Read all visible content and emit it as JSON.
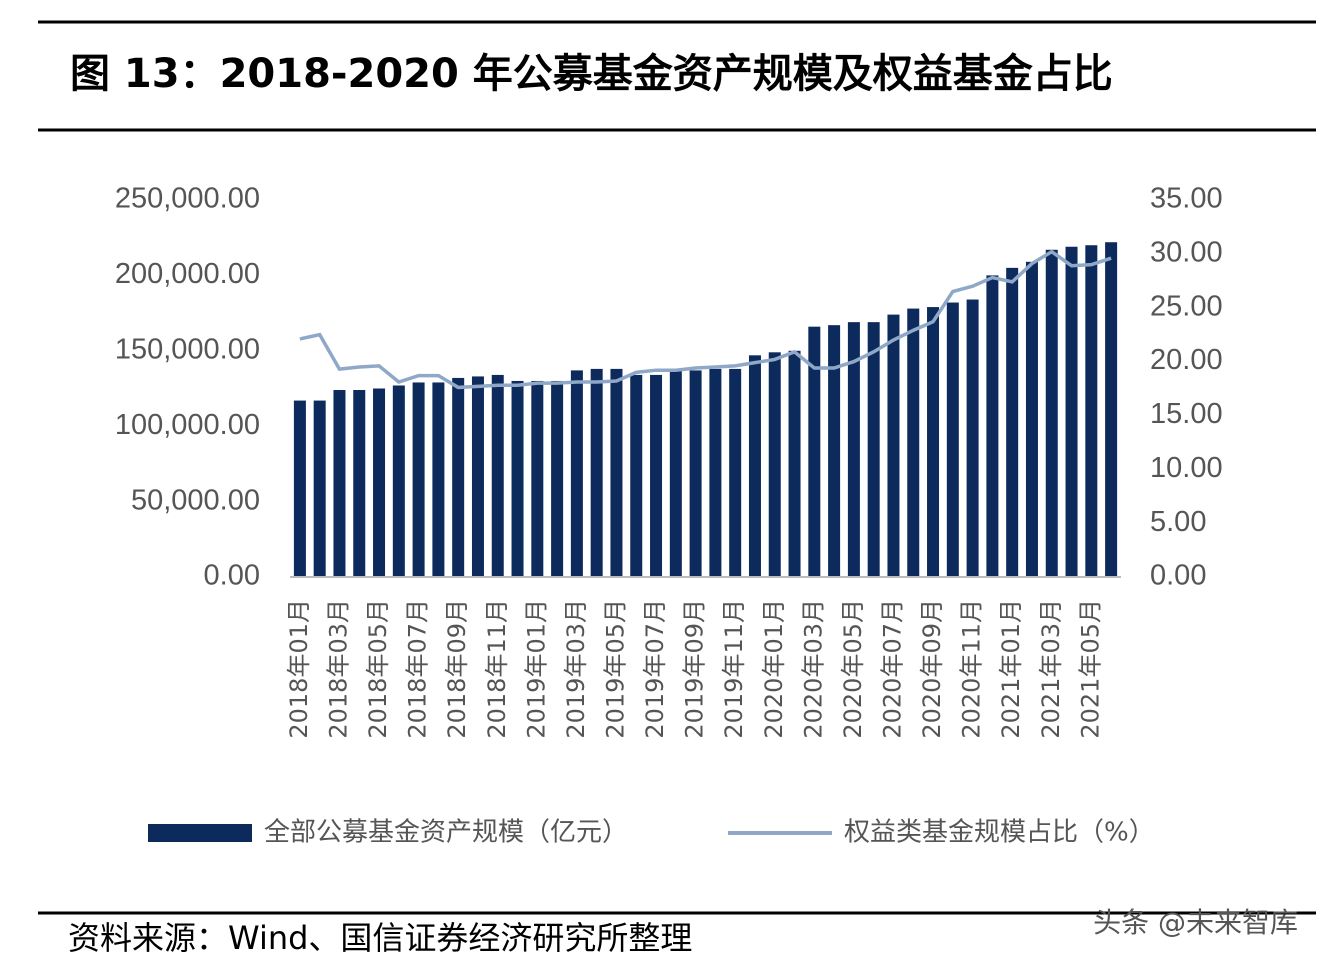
{
  "chart_data": {
    "type": "bar-line",
    "title": "图  13：2018-2020 年公募基金资产规模及权益基金占比",
    "source": "资料来源：Wind、国信证券经济研究所整理",
    "watermark": "头条 @未来智库",
    "categories": [
      "2018年01月",
      null,
      "2018年03月",
      null,
      "2018年05月",
      null,
      "2018年07月",
      null,
      "2018年09月",
      null,
      "2018年11月",
      null,
      "2019年01月",
      null,
      "2019年03月",
      null,
      "2019年05月",
      null,
      "2019年07月",
      null,
      "2019年09月",
      null,
      "2019年11月",
      null,
      "2020年01月",
      null,
      "2020年03月",
      null,
      "2020年05月",
      null,
      "2020年07月",
      null,
      "2020年09月",
      null,
      "2020年11月",
      null,
      "2021年01月",
      null,
      "2021年03月",
      null,
      "2021年05月",
      null
    ],
    "series": [
      {
        "name": "全部公募基金资产规模（亿元）",
        "color": "#0d2a5c",
        "type": "bar",
        "values": [
          117000,
          117000,
          124000,
          124000,
          125000,
          127000,
          129000,
          129000,
          132000,
          133000,
          134000,
          130000,
          130000,
          130000,
          137000,
          138000,
          138000,
          134000,
          134000,
          137000,
          137000,
          138000,
          138000,
          147000,
          149000,
          150000,
          166000,
          167000,
          169000,
          169000,
          174000,
          178000,
          179000,
          182000,
          184000,
          200000,
          205000,
          209000,
          217000,
          219000,
          220000,
          222000
        ]
      },
      {
        "name": "权益类基金规模占比（%）",
        "color": "#8fa8c8",
        "type": "line",
        "axis": "y2",
        "values": [
          22.1,
          22.5,
          19.3,
          19.5,
          19.6,
          18.1,
          18.7,
          18.7,
          17.6,
          17.7,
          17.8,
          17.8,
          18.0,
          18.0,
          18.1,
          18.1,
          18.2,
          19.0,
          19.2,
          19.2,
          19.4,
          19.5,
          19.6,
          19.9,
          20.2,
          20.9,
          19.4,
          19.4,
          20.0,
          20.9,
          22.0,
          22.9,
          23.7,
          26.5,
          27.0,
          27.8,
          27.4,
          29.1,
          30.2,
          28.9,
          29.0,
          29.6
        ]
      }
    ],
    "ylim": [
      0,
      250000
    ],
    "yticks": [
      {
        "value": 0,
        "label": "0.00"
      },
      {
        "value": 50000,
        "label": "50,000.00"
      },
      {
        "value": 100000,
        "label": "100,000.00"
      },
      {
        "value": 150000,
        "label": "150,000.00"
      },
      {
        "value": 200000,
        "label": "200,000.00"
      },
      {
        "value": 250000,
        "label": "250,000.00"
      }
    ],
    "y2lim": [
      0,
      35
    ],
    "y2ticks": [
      {
        "value": 0,
        "label": "0.00"
      },
      {
        "value": 5,
        "label": "5.00"
      },
      {
        "value": 10,
        "label": "10.00"
      },
      {
        "value": 15,
        "label": "15.00"
      },
      {
        "value": 20,
        "label": "20.00"
      },
      {
        "value": 25,
        "label": "25.00"
      },
      {
        "value": 30,
        "label": "30.00"
      },
      {
        "value": 35,
        "label": "35.00"
      }
    ],
    "legend": "bottom",
    "grid": false
  }
}
